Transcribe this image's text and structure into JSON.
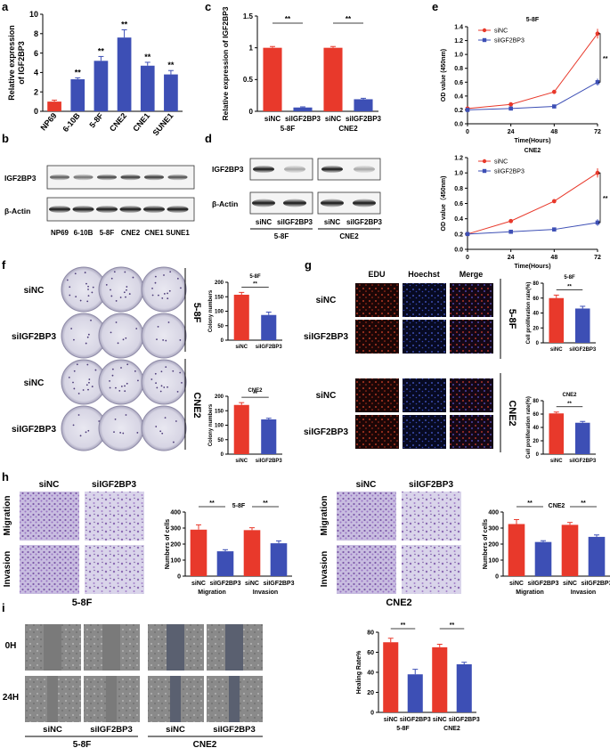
{
  "colors": {
    "red": "#e8392b",
    "blue": "#3d4fb5",
    "black": "#111111",
    "gray": "#888888"
  },
  "panel_letters": [
    "a",
    "b",
    "c",
    "d",
    "e",
    "f",
    "g",
    "h",
    "i"
  ],
  "sig": "**",
  "sig_left": "*",
  "chart_data": [
    {
      "id": "a",
      "type": "bar",
      "color": "#3d4fb5",
      "first_color": "#e8392b",
      "categories": [
        "NP69",
        "6-10B",
        "5-8F",
        "CNE2",
        "CNE1",
        "SUNE1"
      ],
      "values": [
        1.0,
        3.3,
        5.2,
        7.6,
        4.7,
        3.8
      ],
      "errors": [
        0.15,
        0.15,
        0.45,
        0.8,
        0.35,
        0.4
      ],
      "sig": [
        "",
        "**",
        "**",
        "**",
        "**",
        "**"
      ],
      "ylabel": [
        "Relative expression",
        "of IGF2BP3"
      ],
      "ylim": [
        0,
        10
      ],
      "yticks": [
        0,
        2,
        4,
        6,
        8,
        10
      ]
    },
    {
      "id": "c",
      "type": "bar",
      "categories": [
        "siNC",
        "siIGF2BP3",
        "siNC",
        "siIGF2BP3"
      ],
      "values": [
        1.0,
        0.06,
        1.0,
        0.19
      ],
      "errors": [
        0.02,
        0.01,
        0.02,
        0.015
      ],
      "colors": [
        "red",
        "blue",
        "red",
        "blue"
      ],
      "groups": [
        "5-8F",
        "CNE2"
      ],
      "ylabel": [
        "Relative expression of IGF2BP3"
      ],
      "ylim": [
        0,
        1.5
      ],
      "yticks": [
        0.0,
        0.5,
        1.0,
        1.5
      ]
    },
    {
      "id": "e1",
      "type": "line",
      "title": "5-8F",
      "x": [
        0,
        24,
        48,
        72
      ],
      "series": [
        {
          "name": "siNC",
          "color": "red",
          "values": [
            0.22,
            0.28,
            0.46,
            1.3
          ]
        },
        {
          "name": "siIGF2BP3",
          "color": "blue",
          "values": [
            0.2,
            0.22,
            0.25,
            0.6
          ]
        }
      ],
      "xlabel": "Time(Hours)",
      "ylabel": "OD value (450nm)",
      "ylim": [
        0,
        1.4
      ],
      "yticks": [
        0.0,
        0.2,
        0.4,
        0.6,
        0.8,
        1.0,
        1.2,
        1.4
      ]
    },
    {
      "id": "e2",
      "type": "line",
      "title": "CNE2",
      "x": [
        0,
        24,
        48,
        72
      ],
      "series": [
        {
          "name": "siNC",
          "color": "red",
          "values": [
            0.2,
            0.37,
            0.63,
            1.0
          ]
        },
        {
          "name": "siIGF2BP3",
          "color": "blue",
          "values": [
            0.2,
            0.23,
            0.26,
            0.35
          ]
        }
      ],
      "xlabel": "Time(Hours)",
      "ylabel": "OD value（450nm)",
      "ylim": [
        0,
        1.2
      ],
      "yticks": [
        0.0,
        0.2,
        0.4,
        0.6,
        0.8,
        1.0,
        1.2
      ]
    },
    {
      "id": "f1",
      "type": "bar",
      "title": "5-8F",
      "categories": [
        "siNC",
        "siIGF2BP3"
      ],
      "values": [
        157,
        87
      ],
      "errors": [
        8,
        10
      ],
      "colors": [
        "red",
        "blue"
      ],
      "ylabel": [
        "Colony numbers"
      ],
      "ylim": [
        0,
        200
      ],
      "yticks": [
        0,
        50,
        100,
        150,
        200
      ]
    },
    {
      "id": "f2",
      "type": "bar",
      "title": "CNE2",
      "categories": [
        "siNC",
        "siIGF2BP3"
      ],
      "values": [
        170,
        120
      ],
      "errors": [
        8,
        4
      ],
      "colors": [
        "red",
        "blue"
      ],
      "ylabel": [
        "Colony numbers"
      ],
      "ylim": [
        0,
        200
      ],
      "yticks": [
        0,
        50,
        100,
        150,
        200
      ]
    },
    {
      "id": "g1",
      "type": "bar",
      "title": "5-8F",
      "categories": [
        "siNC",
        "siIGF2BP3"
      ],
      "values": [
        60,
        46
      ],
      "errors": [
        4,
        3
      ],
      "colors": [
        "red",
        "blue"
      ],
      "ylabel": [
        "Cell proliferation rate(%)"
      ],
      "ylim": [
        0,
        80
      ],
      "yticks": [
        0,
        20,
        40,
        60,
        80
      ]
    },
    {
      "id": "g2",
      "type": "bar",
      "title": "CNE2",
      "categories": [
        "siNC",
        "siIGF2BP3"
      ],
      "values": [
        61,
        47
      ],
      "errors": [
        2,
        2
      ],
      "colors": [
        "red",
        "blue"
      ],
      "ylabel": [
        "Cell proliferation rate(%)"
      ],
      "ylim": [
        0,
        80
      ],
      "yticks": [
        0,
        20,
        40,
        60,
        80
      ]
    },
    {
      "id": "h1",
      "type": "bar",
      "title": "5-8F",
      "categories": [
        "siNC",
        "siIGF2BP3",
        "siNC",
        "siIGF2BP3"
      ],
      "values": [
        290,
        155,
        287,
        205
      ],
      "errors": [
        30,
        10,
        15,
        15
      ],
      "colors": [
        "red",
        "blue",
        "red",
        "blue"
      ],
      "groups": [
        "Migration",
        "Invasion"
      ],
      "ylabel": [
        "Numbers of cells"
      ],
      "ylim": [
        0,
        400
      ],
      "yticks": [
        0,
        100,
        200,
        300,
        400
      ]
    },
    {
      "id": "h2",
      "type": "bar",
      "title": "CNE2",
      "categories": [
        "siNC",
        "siIGF2BP3",
        "siNC",
        "siIGF2BP3"
      ],
      "values": [
        325,
        213,
        320,
        245
      ],
      "errors": [
        28,
        8,
        15,
        12
      ],
      "colors": [
        "red",
        "blue",
        "red",
        "blue"
      ],
      "groups": [
        "Migration",
        "Invasion"
      ],
      "ylabel": [
        "Numbers of cells"
      ],
      "ylim": [
        0,
        400
      ],
      "yticks": [
        0,
        100,
        200,
        300,
        400
      ]
    },
    {
      "id": "i",
      "type": "bar",
      "categories": [
        "siNC",
        "siIGF2BP3",
        "siNC",
        "siIGF2BP3"
      ],
      "values": [
        70,
        38,
        65,
        48
      ],
      "errors": [
        4,
        5,
        3,
        2
      ],
      "colors": [
        "red",
        "blue",
        "red",
        "blue"
      ],
      "groups": [
        "5-8F",
        "CNE2"
      ],
      "ylabel": [
        "Healing Rate%"
      ],
      "ylim": [
        0,
        80
      ],
      "yticks": [
        0,
        20,
        40,
        60,
        80
      ]
    }
  ],
  "blot_b": {
    "proteins": [
      "IGF2BP3",
      "β-Actin"
    ],
    "lanes": [
      "NP69",
      "6-10B",
      "5-8F",
      "CNE2",
      "CNE1",
      "SUNE1"
    ],
    "igf_intensity": [
      0.7,
      0.6,
      0.8,
      0.85,
      0.85,
      0.75
    ]
  },
  "blot_d": {
    "proteins": [
      "IGF2BP3",
      "β-Actin"
    ],
    "lanes": [
      "siNC",
      "siIGF2BP3",
      "siNC",
      "siIGF2BP3"
    ],
    "groups": [
      "5-8F",
      "CNE2"
    ]
  },
  "panel_f": {
    "rows": [
      "siNC",
      "siIGF2BP3",
      "siNC",
      "siIGF2BP3"
    ],
    "groups": [
      "5-8F",
      "CNE2"
    ]
  },
  "panel_g": {
    "cols": [
      "EDU",
      "Hoechst",
      "Merge"
    ],
    "rows": [
      "siNC",
      "siIGF2BP3",
      "siNC",
      "siIGF2BP3"
    ],
    "groups": [
      "5-8F",
      "CNE2"
    ]
  },
  "panel_h": {
    "cols": [
      "siNC",
      "siIGF2BP3"
    ],
    "rows": [
      "Migration",
      "Invasion"
    ],
    "groups": [
      "5-8F",
      "CNE2"
    ]
  },
  "panel_i": {
    "rows": [
      "0H",
      "24H"
    ],
    "cols": [
      "siNC",
      "siIGF2BP3",
      "siNC",
      "siIGF2BP3"
    ],
    "groups": [
      "5-8F",
      "CNE2"
    ]
  }
}
